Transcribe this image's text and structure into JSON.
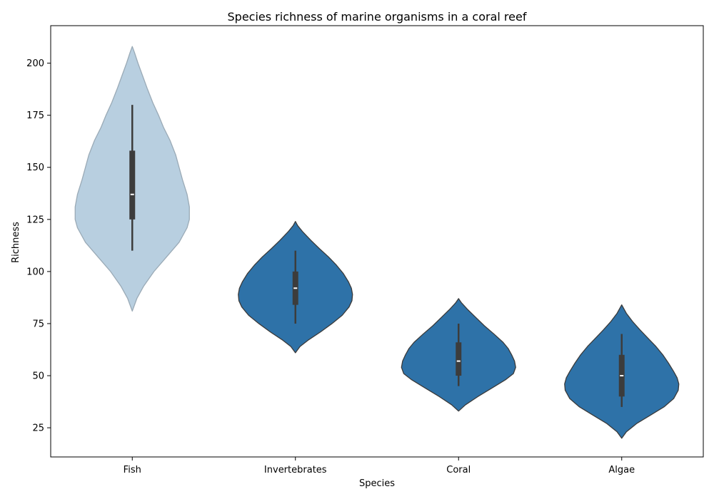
{
  "chart_data": {
    "type": "violin",
    "title": "Species richness of marine organisms in a coral reef",
    "xlabel": "Species",
    "ylabel": "Richness",
    "ylim": [
      11,
      218
    ],
    "yticks": [
      25,
      50,
      75,
      100,
      125,
      150,
      175,
      200
    ],
    "grid": false,
    "categories": [
      "Fish",
      "Invertebrates",
      "Coral",
      "Algae"
    ],
    "violins": [
      {
        "category": "Fish",
        "fill": "#b8cfe0",
        "edge": "#9aaab6",
        "range": [
          81,
          208
        ],
        "whisker": [
          110,
          180
        ],
        "q1": 125,
        "median": 137,
        "q3": 158,
        "density_y": [
          81,
          87,
          93,
          100,
          107,
          114,
          121,
          125,
          131,
          137,
          144,
          150,
          156,
          163,
          169,
          175,
          181,
          188,
          194,
          200,
          205,
          208
        ],
        "density_halfwidth_share": [
          0.0,
          0.08,
          0.2,
          0.38,
          0.6,
          0.82,
          0.96,
          1.0,
          1.0,
          0.96,
          0.88,
          0.82,
          0.76,
          0.66,
          0.55,
          0.46,
          0.36,
          0.26,
          0.18,
          0.1,
          0.04,
          0.0
        ]
      },
      {
        "category": "Invertebrates",
        "fill": "#2e72a8",
        "edge": "#3a3a3a",
        "range": [
          61,
          124
        ],
        "whisker": [
          75,
          110
        ],
        "q1": 84,
        "median": 92,
        "q3": 100,
        "density_y": [
          61,
          64,
          67,
          71,
          75,
          79,
          83,
          86,
          89,
          92,
          95,
          99,
          103,
          107,
          111,
          115,
          119,
          122,
          124
        ],
        "density_halfwidth_share": [
          0.0,
          0.08,
          0.22,
          0.44,
          0.64,
          0.82,
          0.94,
          0.99,
          1.0,
          0.98,
          0.93,
          0.84,
          0.72,
          0.58,
          0.42,
          0.27,
          0.13,
          0.04,
          0.0
        ]
      },
      {
        "category": "Coral",
        "fill": "#2e72a8",
        "edge": "#3a3a3a",
        "range": [
          33,
          87
        ],
        "whisker": [
          45,
          75
        ],
        "q1": 50,
        "median": 57,
        "q3": 66,
        "density_y": [
          33,
          36,
          40,
          44,
          48,
          51,
          54,
          57,
          60,
          63,
          66,
          70,
          74,
          78,
          82,
          85,
          87
        ],
        "density_halfwidth_share": [
          0.0,
          0.12,
          0.34,
          0.58,
          0.82,
          0.96,
          1.0,
          0.98,
          0.93,
          0.87,
          0.78,
          0.62,
          0.45,
          0.3,
          0.15,
          0.05,
          0.0
        ]
      },
      {
        "category": "Algae",
        "fill": "#2e72a8",
        "edge": "#3a3a3a",
        "range": [
          20,
          84
        ],
        "whisker": [
          35,
          70
        ],
        "q1": 40,
        "median": 50,
        "q3": 60,
        "density_y": [
          20,
          23,
          27,
          31,
          35,
          39,
          43,
          46,
          49,
          52,
          56,
          60,
          64,
          68,
          72,
          76,
          80,
          83,
          84
        ],
        "density_halfwidth_share": [
          0.0,
          0.08,
          0.26,
          0.5,
          0.74,
          0.91,
          0.99,
          1.0,
          0.97,
          0.91,
          0.82,
          0.72,
          0.6,
          0.46,
          0.32,
          0.19,
          0.08,
          0.02,
          0.0
        ]
      }
    ]
  }
}
